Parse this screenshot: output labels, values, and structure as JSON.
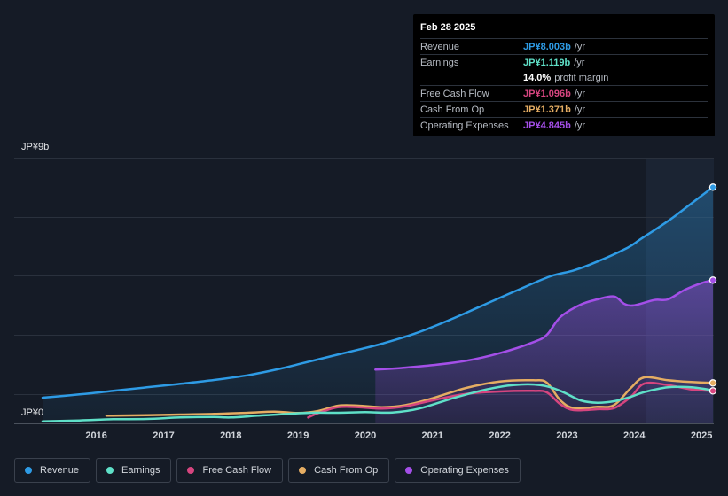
{
  "tooltip": {
    "date": "Feb 28 2025",
    "rows": [
      {
        "label": "Revenue",
        "value": "JP¥8.003b",
        "unit": "/yr"
      },
      {
        "label": "Earnings",
        "value": "JP¥1.119b",
        "unit": "/yr"
      },
      {
        "label": "",
        "value": "14.0%",
        "unit": "profit margin"
      },
      {
        "label": "Free Cash Flow",
        "value": "JP¥1.096b",
        "unit": "/yr"
      },
      {
        "label": "Cash From Op",
        "value": "JP¥1.371b",
        "unit": "/yr"
      },
      {
        "label": "Operating Expenses",
        "value": "JP¥4.845b",
        "unit": "/yr"
      }
    ]
  },
  "colors": {
    "revenue": "#2e9be5",
    "earnings": "#5fe0c8",
    "fcf": "#d6457f",
    "cfo": "#e5ad63",
    "opex": "#a44fe8"
  },
  "legend": [
    {
      "label": "Revenue",
      "color": "#2e9be5"
    },
    {
      "label": "Earnings",
      "color": "#5fe0c8"
    },
    {
      "label": "Free Cash Flow",
      "color": "#d6457f"
    },
    {
      "label": "Cash From Op",
      "color": "#e5ad63"
    },
    {
      "label": "Operating Expenses",
      "color": "#a44fe8"
    }
  ],
  "chart_data": {
    "type": "area",
    "y_top_label": "JP¥9b",
    "y_bottom_label": "JP¥0",
    "ylim": [
      0,
      9
    ],
    "xlim": [
      2015.2,
      2025.17
    ],
    "x_ticks": [
      2016,
      2017,
      2018,
      2019,
      2020,
      2021,
      2022,
      2023,
      2024,
      2025
    ],
    "x_tick_labels": [
      "2016",
      "2017",
      "2018",
      "2019",
      "2020",
      "2021",
      "2022",
      "2023",
      "2024",
      "2025"
    ],
    "highlight_from": 2024.17,
    "series": [
      {
        "name": "Revenue",
        "key": "revenue",
        "fill": true,
        "x": [
          2015.2,
          2015.75,
          2016.25,
          2016.75,
          2017.25,
          2017.75,
          2018.25,
          2018.75,
          2019.0,
          2019.5,
          2019.9,
          2020.25,
          2020.75,
          2021.25,
          2021.75,
          2022.25,
          2022.75,
          2023.1,
          2023.45,
          2023.9,
          2024.1,
          2024.5,
          2024.85,
          2025.17
        ],
        "values": [
          0.87,
          0.98,
          1.1,
          1.22,
          1.34,
          1.47,
          1.63,
          1.86,
          2.0,
          2.28,
          2.5,
          2.7,
          3.05,
          3.5,
          4.0,
          4.5,
          4.98,
          5.18,
          5.48,
          5.95,
          6.25,
          6.85,
          7.45,
          8.0
        ]
      },
      {
        "name": "Operating Expenses",
        "key": "opex",
        "fill": true,
        "x": [
          2020.15,
          2020.5,
          2021.0,
          2021.5,
          2022.0,
          2022.5,
          2022.7,
          2022.9,
          2023.2,
          2023.45,
          2023.7,
          2023.85,
          2024.0,
          2024.3,
          2024.5,
          2024.75,
          2025.0,
          2025.17
        ],
        "values": [
          1.82,
          1.87,
          1.97,
          2.12,
          2.38,
          2.75,
          3.0,
          3.6,
          4.02,
          4.2,
          4.3,
          4.05,
          4.0,
          4.18,
          4.2,
          4.52,
          4.75,
          4.85
        ]
      },
      {
        "name": "Cash From Op",
        "key": "cfo",
        "fill": false,
        "x": [
          2016.15,
          2016.75,
          2017.25,
          2017.75,
          2018.25,
          2018.65,
          2019.0,
          2019.3,
          2019.6,
          2019.9,
          2020.25,
          2020.6,
          2021.0,
          2021.5,
          2022.0,
          2022.5,
          2022.7,
          2022.9,
          2023.1,
          2023.45,
          2023.7,
          2023.95,
          2024.15,
          2024.5,
          2024.85,
          2025.17
        ],
        "values": [
          0.26,
          0.28,
          0.3,
          0.32,
          0.36,
          0.4,
          0.35,
          0.42,
          0.6,
          0.6,
          0.55,
          0.62,
          0.85,
          1.2,
          1.42,
          1.46,
          1.38,
          0.78,
          0.52,
          0.56,
          0.62,
          1.2,
          1.56,
          1.46,
          1.4,
          1.37
        ]
      },
      {
        "name": "Free Cash Flow",
        "key": "fcf",
        "fill": false,
        "x": [
          2019.15,
          2019.3,
          2019.6,
          2019.9,
          2020.25,
          2020.6,
          2021.0,
          2021.5,
          2022.0,
          2022.5,
          2022.7,
          2022.9,
          2023.1,
          2023.45,
          2023.7,
          2023.95,
          2024.15,
          2024.5,
          2024.85,
          2025.17
        ],
        "values": [
          0.2,
          0.35,
          0.55,
          0.55,
          0.5,
          0.58,
          0.78,
          1.0,
          1.08,
          1.1,
          1.05,
          0.65,
          0.45,
          0.48,
          0.52,
          0.9,
          1.35,
          1.3,
          1.15,
          1.1
        ]
      },
      {
        "name": "Earnings",
        "key": "earnings",
        "fill": false,
        "x": [
          2015.2,
          2015.75,
          2016.25,
          2016.75,
          2017.25,
          2017.75,
          2018.0,
          2018.4,
          2018.75,
          2019.2,
          2019.6,
          2020.0,
          2020.4,
          2020.8,
          2021.3,
          2021.8,
          2022.2,
          2022.6,
          2022.9,
          2023.2,
          2023.45,
          2023.7,
          2023.95,
          2024.15,
          2024.5,
          2024.85,
          2025.17
        ],
        "values": [
          0.07,
          0.1,
          0.14,
          0.15,
          0.2,
          0.22,
          0.2,
          0.26,
          0.31,
          0.36,
          0.36,
          0.38,
          0.37,
          0.5,
          0.85,
          1.15,
          1.3,
          1.3,
          1.1,
          0.78,
          0.7,
          0.75,
          0.9,
          1.06,
          1.22,
          1.22,
          1.12
        ]
      }
    ]
  }
}
